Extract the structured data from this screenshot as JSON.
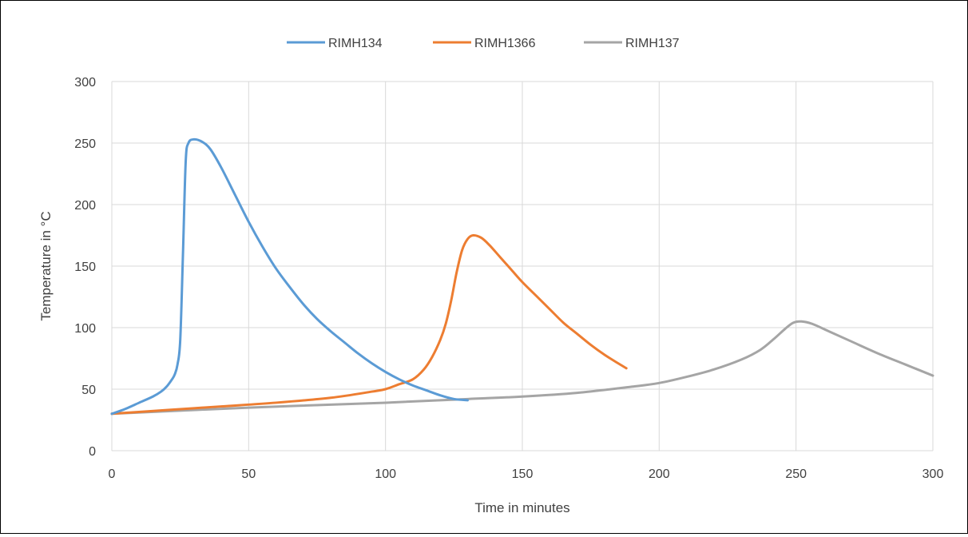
{
  "chart_data": {
    "type": "line",
    "xlabel": "Time in minutes",
    "ylabel": "Temperature in °C",
    "xlim": [
      0,
      300
    ],
    "ylim": [
      0,
      300
    ],
    "x_ticks": [
      "0",
      "50",
      "100",
      "150",
      "200",
      "250",
      "300"
    ],
    "y_ticks": [
      "0",
      "50",
      "100",
      "150",
      "200",
      "250",
      "300"
    ],
    "grid": true,
    "legend_position": "top",
    "series": [
      {
        "name": "RIMH134",
        "color": "#5B9BD5",
        "points": [
          [
            0,
            30
          ],
          [
            5,
            34
          ],
          [
            10,
            39
          ],
          [
            15,
            44
          ],
          [
            18,
            48
          ],
          [
            20,
            52
          ],
          [
            22,
            58
          ],
          [
            23,
            62
          ],
          [
            24,
            70
          ],
          [
            25,
            90
          ],
          [
            26,
            160
          ],
          [
            27,
            235
          ],
          [
            28,
            250
          ],
          [
            30,
            253
          ],
          [
            33,
            251
          ],
          [
            36,
            245
          ],
          [
            40,
            230
          ],
          [
            45,
            208
          ],
          [
            50,
            186
          ],
          [
            55,
            166
          ],
          [
            60,
            148
          ],
          [
            65,
            133
          ],
          [
            70,
            119
          ],
          [
            75,
            107
          ],
          [
            80,
            97
          ],
          [
            85,
            88
          ],
          [
            90,
            79
          ],
          [
            95,
            71
          ],
          [
            100,
            64
          ],
          [
            105,
            58
          ],
          [
            110,
            53
          ],
          [
            115,
            49
          ],
          [
            120,
            45
          ],
          [
            125,
            42
          ],
          [
            130,
            41
          ]
        ]
      },
      {
        "name": "RIMH1366",
        "color": "#ED7D31",
        "points": [
          [
            0,
            30
          ],
          [
            20,
            33
          ],
          [
            40,
            36
          ],
          [
            60,
            39
          ],
          [
            80,
            43
          ],
          [
            95,
            48
          ],
          [
            100,
            50
          ],
          [
            105,
            54
          ],
          [
            110,
            58
          ],
          [
            114,
            66
          ],
          [
            117,
            76
          ],
          [
            120,
            90
          ],
          [
            122,
            103
          ],
          [
            124,
            122
          ],
          [
            126,
            145
          ],
          [
            128,
            163
          ],
          [
            130,
            172
          ],
          [
            132,
            175
          ],
          [
            135,
            173
          ],
          [
            138,
            167
          ],
          [
            142,
            157
          ],
          [
            146,
            147
          ],
          [
            150,
            137
          ],
          [
            155,
            126
          ],
          [
            160,
            115
          ],
          [
            165,
            104
          ],
          [
            170,
            95
          ],
          [
            175,
            86
          ],
          [
            180,
            78
          ],
          [
            185,
            71
          ],
          [
            188,
            67
          ]
        ]
      },
      {
        "name": "RIMH137",
        "color": "#A5A5A5",
        "points": [
          [
            0,
            30
          ],
          [
            50,
            35
          ],
          [
            100,
            39
          ],
          [
            130,
            42
          ],
          [
            150,
            44
          ],
          [
            170,
            47
          ],
          [
            190,
            52
          ],
          [
            200,
            55
          ],
          [
            210,
            60
          ],
          [
            220,
            66
          ],
          [
            230,
            74
          ],
          [
            237,
            82
          ],
          [
            242,
            91
          ],
          [
            246,
            99
          ],
          [
            249,
            104
          ],
          [
            252,
            105
          ],
          [
            256,
            103
          ],
          [
            262,
            97
          ],
          [
            270,
            89
          ],
          [
            280,
            79
          ],
          [
            290,
            70
          ],
          [
            300,
            61
          ]
        ]
      }
    ]
  }
}
